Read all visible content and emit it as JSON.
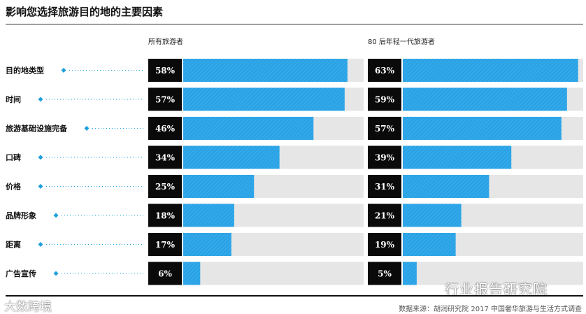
{
  "title": "影响您选择旅游目的地的主要因素",
  "source": "数据来源：胡润研究院 2017 中国奢华旅游与生活方式调查",
  "watermark_right": "行业报告研究院",
  "watermark_left": "大数跨境",
  "colors": {
    "bar": "#2aa3e6",
    "track": "#e6e6e6",
    "label_box": "#0a0a0a",
    "diamond": "#1ea0dc"
  },
  "chart_data": {
    "type": "bar",
    "orientation": "horizontal",
    "title": "影响您选择旅游目的地的主要因素",
    "categories": [
      "目的地类型",
      "时间",
      "旅游基础设施完备",
      "口碑",
      "价格",
      "品牌形象",
      "距离",
      "广告宣传"
    ],
    "series": [
      {
        "name": "所有旅游者",
        "values": [
          58,
          57,
          46,
          34,
          25,
          18,
          17,
          6
        ]
      },
      {
        "name": "80 后年轻一代旅游者",
        "values": [
          63,
          59,
          57,
          39,
          31,
          21,
          19,
          5
        ]
      }
    ],
    "value_labels": [
      [
        "58%",
        "57%",
        "46%",
        "34%",
        "25%",
        "18%",
        "17%",
        "6%"
      ],
      [
        "63%",
        "59%",
        "57%",
        "39%",
        "31%",
        "21%",
        "19%",
        "5%"
      ]
    ],
    "xlim": [
      0,
      65
    ],
    "unit": "%"
  }
}
